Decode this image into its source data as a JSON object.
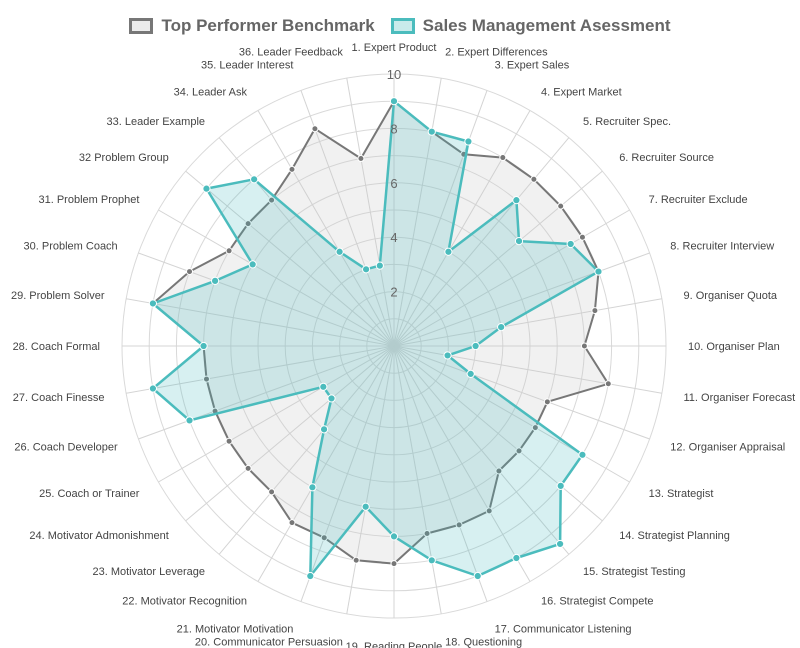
{
  "chart_data": {
    "type": "radar",
    "title": "",
    "r_range": [
      0,
      10
    ],
    "r_ticks": [
      "2",
      "4",
      "6",
      "8",
      "10"
    ],
    "legend_position": "top-center",
    "categories": [
      "1. Expert Product",
      "2. Expert Differences",
      "3. Expert Sales",
      "4. Expert Market",
      "5. Recruiter Spec.",
      "6. Recruiter Source",
      "7. Recruiter Exclude",
      "8. Recruiter Interview",
      "9. Organiser Quota",
      "10. Organiser Plan",
      "11. Organiser Forecast",
      "12. Organiser Appraisal",
      "13. Strategist",
      "14. Strategist Planning",
      "15. Strategist Testing",
      "16. Strategist Compete",
      "17. Communicator Listening",
      "18. Questioning",
      "19. Reading People",
      "20. Communicator Persuasion",
      "21. Motivator Motivation",
      "22. Motivator Recognition",
      "23. Motivator Leverage",
      "24. Motivator Admonishment",
      "25. Coach or Trainer",
      "26. Coach Developer",
      "27. Coach Finesse",
      "28. Coach Formal",
      "29. Problem Solver",
      "30. Problem Coach",
      "31. Problem Prophet",
      "32 Problem Group",
      "33. Leader Example",
      "34. Leader Ask",
      "35. Leader Interest",
      "36. Leader Feedback"
    ],
    "series": [
      {
        "name": "Top Performer Benchmark",
        "color": "#777777",
        "fill": "rgba(200,200,200,0.25)",
        "values": [
          9,
          8,
          7.5,
          8,
          8,
          8,
          8,
          8,
          7.5,
          7,
          8,
          6,
          6,
          6,
          6,
          7,
          7,
          7,
          8,
          8,
          7.5,
          7.5,
          7,
          7,
          7,
          7,
          7,
          7,
          9,
          8,
          7,
          7,
          7,
          7.5,
          8.5,
          7
        ]
      },
      {
        "name": "Sales Management Asessment",
        "color": "#4bbcbd",
        "fill": "rgba(75,188,189,0.22)",
        "values": [
          9,
          8,
          8,
          4,
          7,
          6,
          7.5,
          8,
          4,
          3,
          2,
          3,
          8,
          8,
          9.5,
          9,
          9,
          8,
          7,
          6,
          9,
          6,
          4,
          3,
          3,
          8,
          9,
          7,
          9,
          7,
          6,
          9,
          8,
          4,
          3,
          3
        ]
      }
    ]
  }
}
